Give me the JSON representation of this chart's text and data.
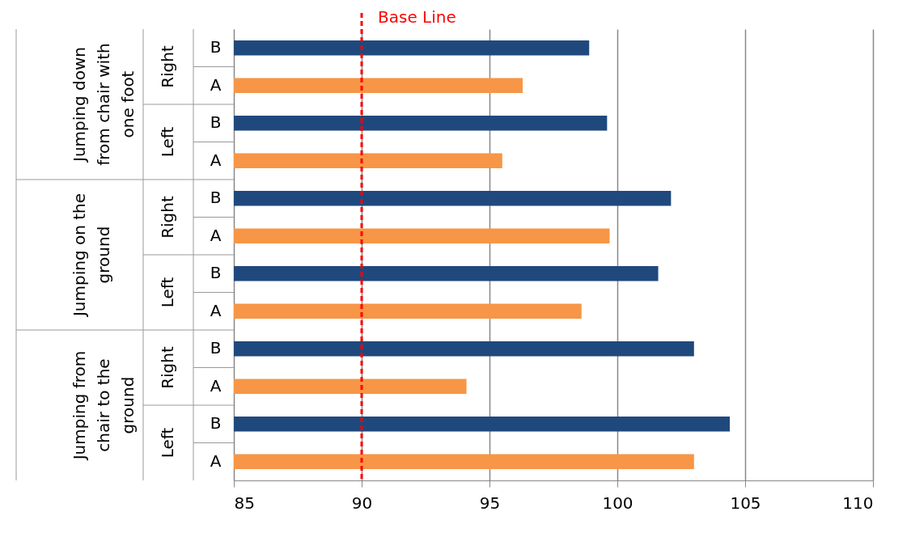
{
  "chart_data": {
    "type": "bar",
    "orientation": "horizontal",
    "categories": [
      "B",
      "A",
      "B",
      "A",
      "B",
      "A",
      "B",
      "A",
      "B",
      "A",
      "B",
      "A"
    ],
    "values": [
      98.9,
      96.3,
      99.6,
      95.5,
      102.1,
      99.7,
      101.6,
      98.6,
      103.0,
      94.1,
      104.4,
      103.0
    ],
    "colors": [
      "#1f497d",
      "#f79646",
      "#1f497d",
      "#f79646",
      "#1f497d",
      "#f79646",
      "#1f497d",
      "#f79646",
      "#1f497d",
      "#f79646",
      "#1f497d",
      "#f79646"
    ],
    "xlim": [
      85,
      110
    ],
    "xticks": [
      85,
      90,
      95,
      100,
      105,
      110
    ],
    "grid": "x",
    "ref_lines": [
      {
        "axis": "x",
        "value": 90,
        "label": "Base Line",
        "color": "#ff0000",
        "line_style": "dashed"
      }
    ],
    "annotations": [
      "Jumping down from chair with one foot",
      "Jumping on the ground",
      "Jumping from chair to the ground",
      "Right",
      "Left",
      "Right",
      "Left",
      "Right",
      "Left"
    ]
  }
}
